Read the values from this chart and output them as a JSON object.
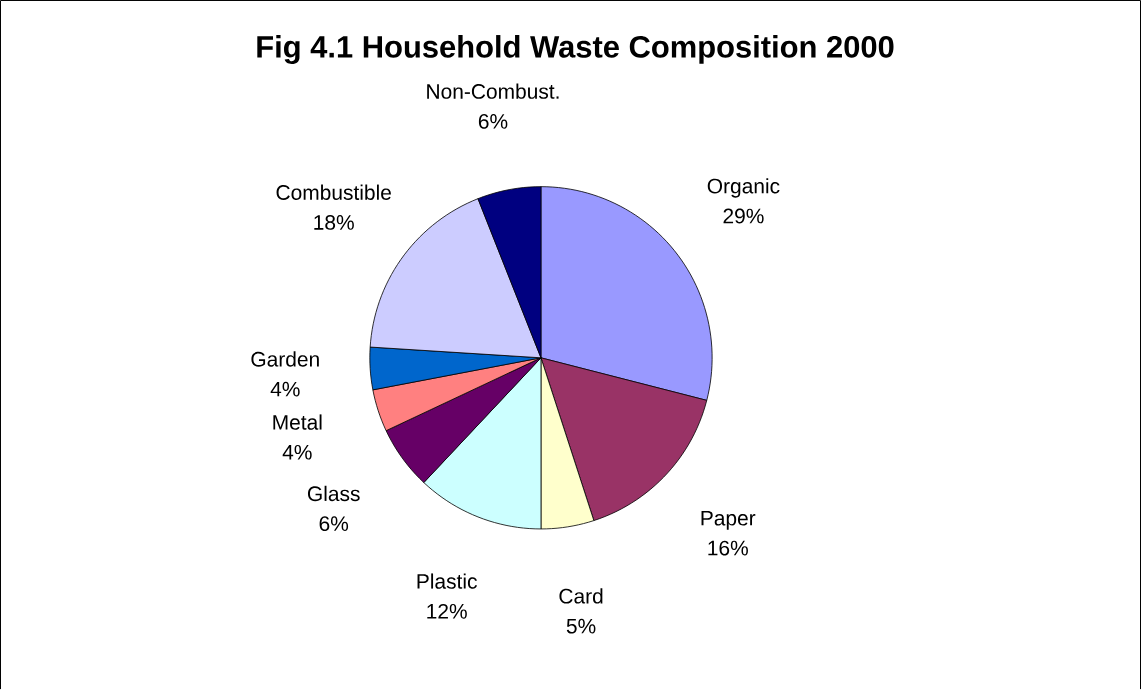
{
  "chart_data": {
    "type": "pie",
    "title": "Fig 4.1 Household Waste Composition 2000",
    "categories": [
      "Organic",
      "Paper",
      "Card",
      "Plastic",
      "Glass",
      "Metal",
      "Garden",
      "Combustible",
      "Non-Combust."
    ],
    "values": [
      29,
      16,
      5,
      12,
      6,
      4,
      4,
      18,
      6
    ],
    "value_labels": [
      "29%",
      "16%",
      "5%",
      "12%",
      "6%",
      "4%",
      "4%",
      "18%",
      "6%"
    ],
    "colors": [
      "#9999ff",
      "#993366",
      "#ffffcc",
      "#ccffff",
      "#660066",
      "#ff8080",
      "#0066cc",
      "#ccccff",
      "#000080"
    ]
  }
}
